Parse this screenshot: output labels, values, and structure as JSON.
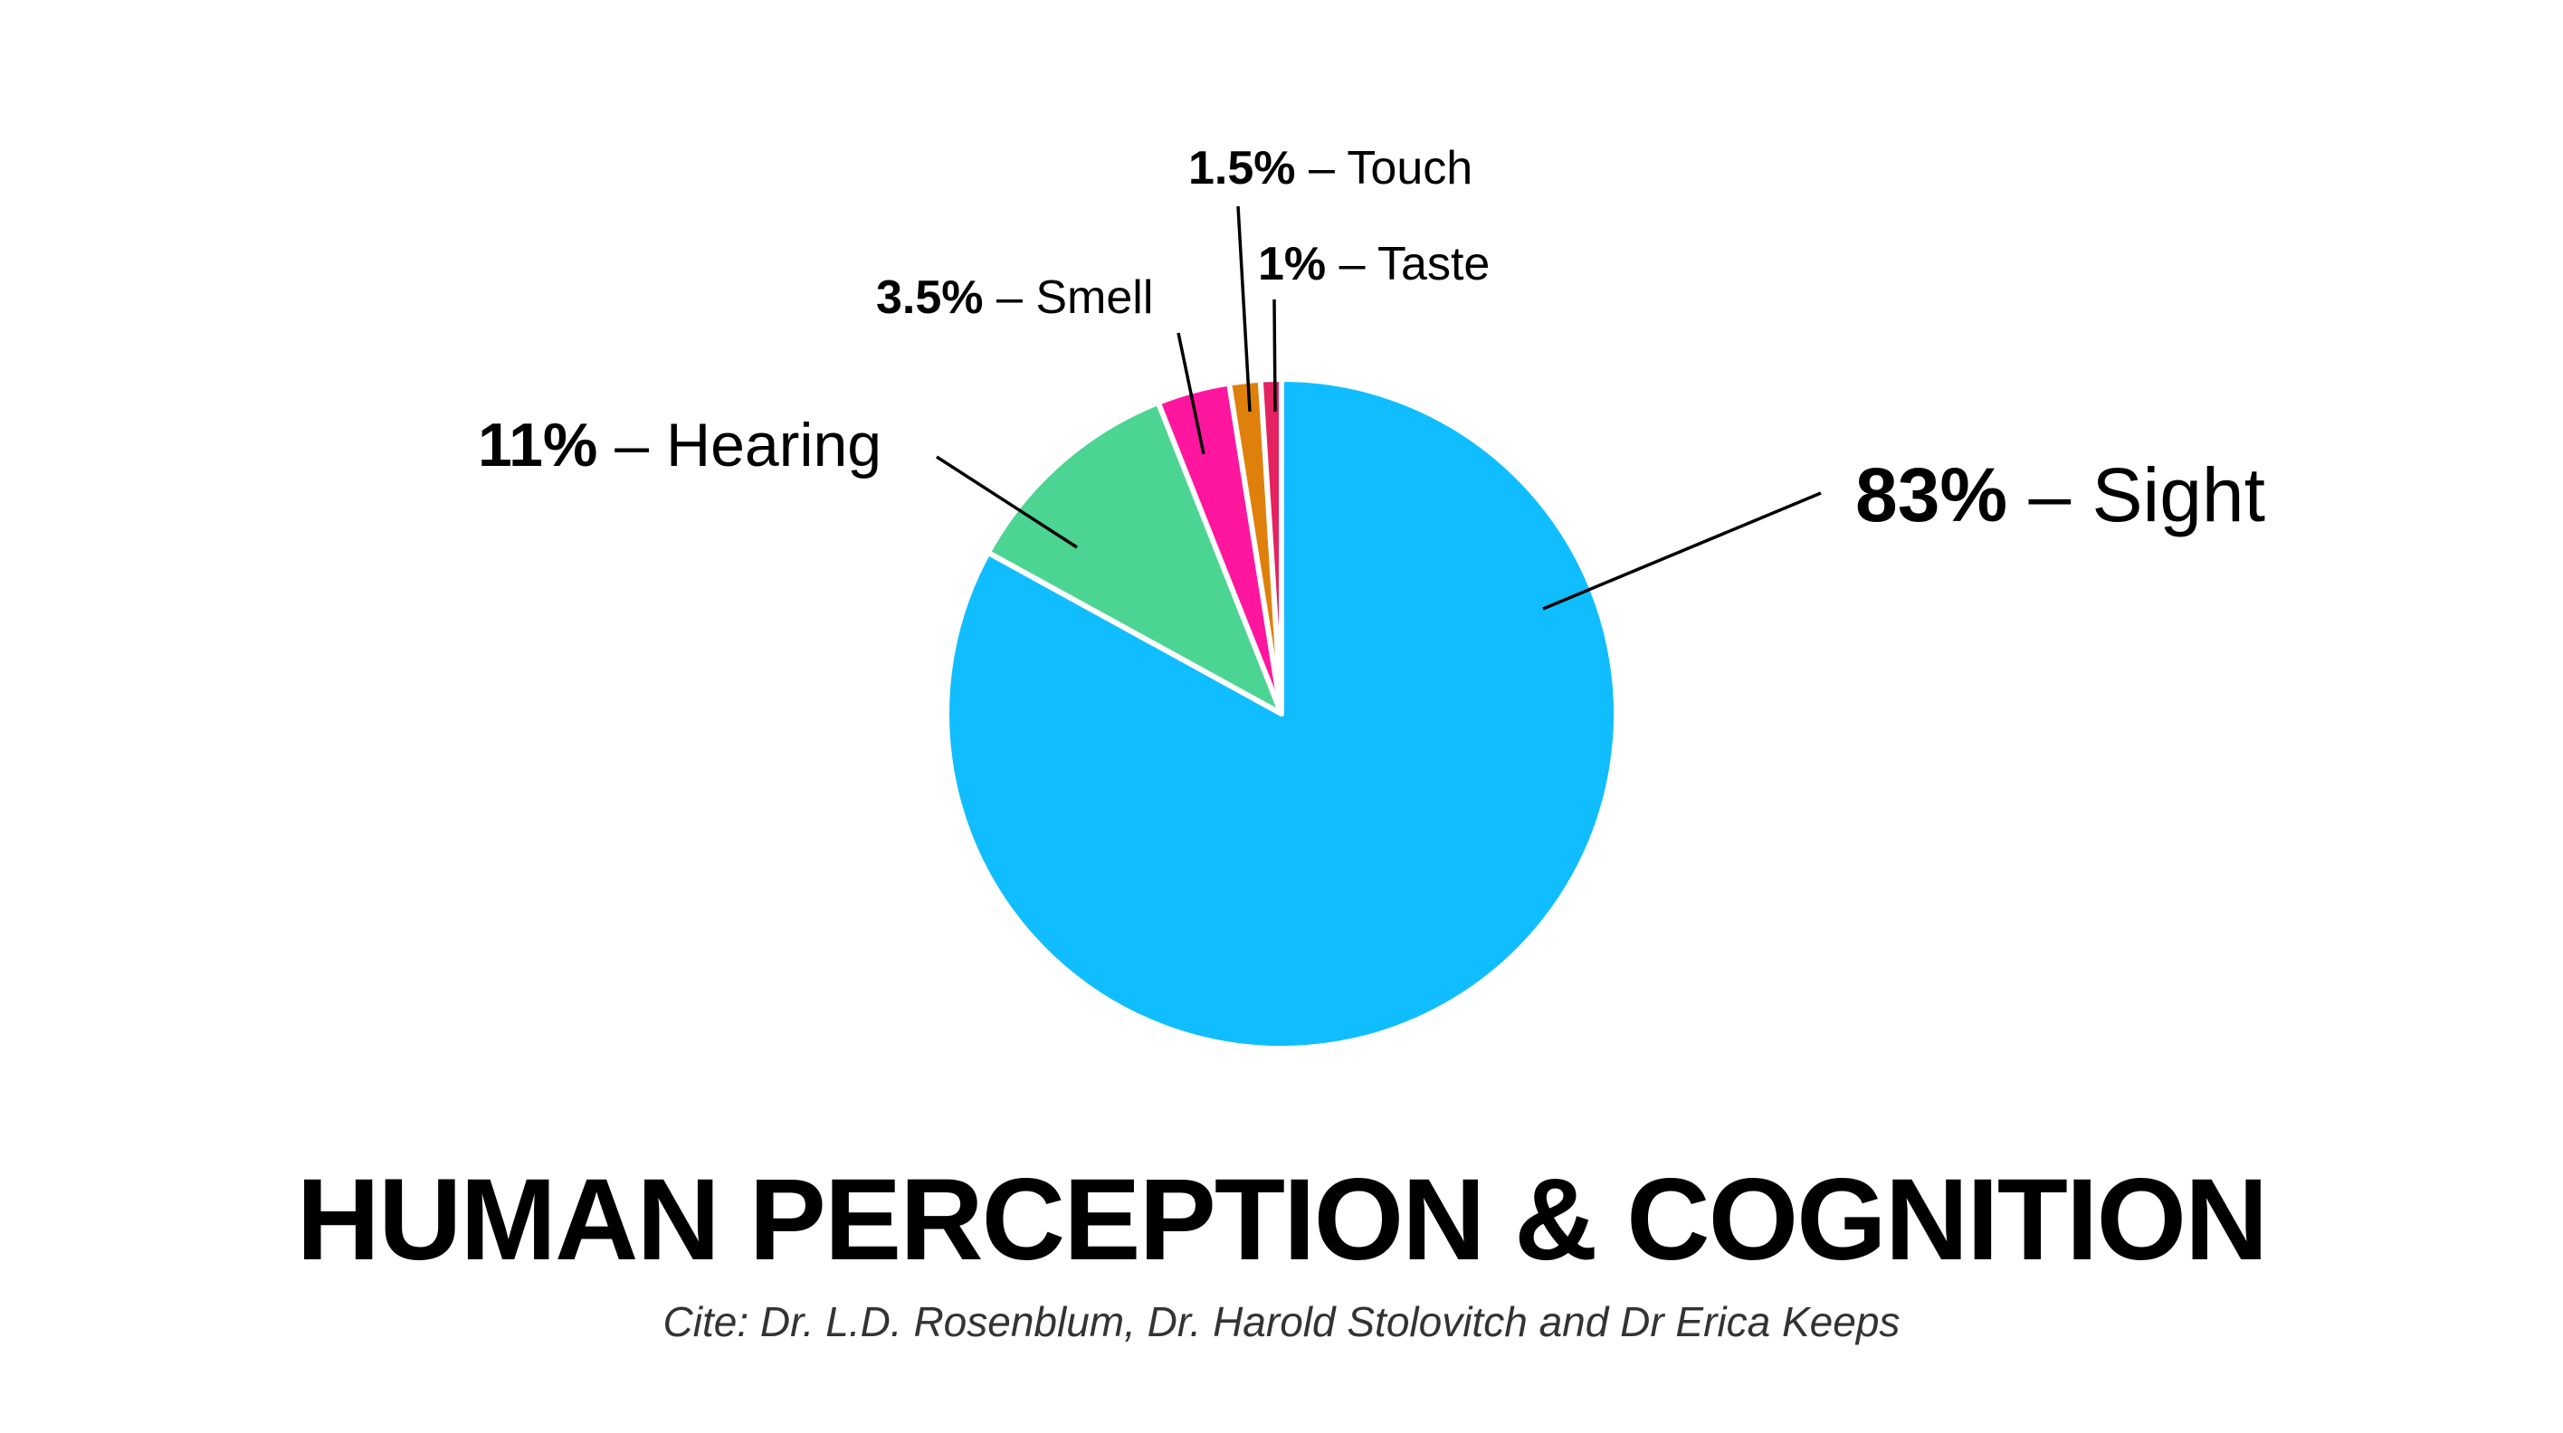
{
  "chart_data": {
    "type": "pie",
    "title": "HUMAN PERCEPTION & COGNITION",
    "subtitle": "Cite: Dr. L.D. Rosenblum, Dr. Harold Stolovitch and Dr Erica Keeps",
    "categories": [
      "Sight",
      "Hearing",
      "Smell",
      "Touch",
      "Taste"
    ],
    "values": [
      83,
      11,
      3.5,
      1.5,
      1
    ],
    "unit": "%",
    "colors": [
      "#10BEFF",
      "#4CD492",
      "#FF169F",
      "#E0800C",
      "#E3225F"
    ],
    "start_angle": "12 o'clock, clockwise",
    "legend": "none (callout labels)"
  },
  "labels": {
    "sight": {
      "pct": "83%",
      "text": " – Sight"
    },
    "hearing": {
      "pct": "11%",
      "text": " – Hearing"
    },
    "smell": {
      "pct": "3.5%",
      "text": " – Smell"
    },
    "touch": {
      "pct": "1.5%",
      "text": " – Touch"
    },
    "taste": {
      "pct": "1%",
      "text": " – Taste"
    }
  },
  "title": "HUMAN PERCEPTION & COGNITION",
  "cite": "Cite: Dr. L.D. Rosenblum, Dr. Harold Stolovitch and Dr Erica Keeps"
}
